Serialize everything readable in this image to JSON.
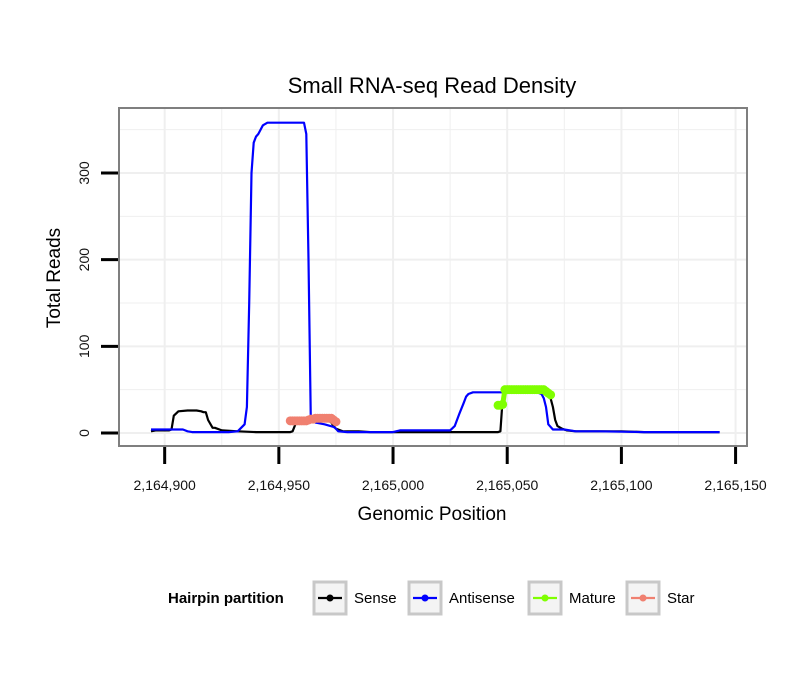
{
  "chart_data": {
    "type": "line",
    "title": "Small RNA-seq Read Density",
    "xlabel": "Genomic Position",
    "ylabel": "Total Reads",
    "xlim": [
      2164880,
      2165155
    ],
    "ylim": [
      -15,
      375
    ],
    "x_ticks": [
      2164900,
      2164950,
      2165000,
      2165050,
      2165100,
      2165150
    ],
    "x_tick_labels": [
      "2,164,900",
      "2,164,950",
      "2,165,000",
      "2,165,050",
      "2,165,100",
      "2,165,150"
    ],
    "y_ticks": [
      0,
      100,
      200,
      300
    ],
    "y_tick_labels": [
      "0",
      "100",
      "200",
      "300"
    ],
    "grid": true,
    "legend": {
      "title": "Hairpin partition",
      "position": "bottom",
      "entries": [
        "Sense",
        "Antisense",
        "Mature",
        "Star"
      ]
    },
    "series": [
      {
        "name": "Sense",
        "color": "#000000",
        "style": "line",
        "x": [
          2164894,
          2164896,
          2164902,
          2164903,
          2164904,
          2164906,
          2164910,
          2164914,
          2164916,
          2164917,
          2164918,
          2164919,
          2164921,
          2164922,
          2164925,
          2164932,
          2164940,
          2164950,
          2164955,
          2164956,
          2164958,
          2164962,
          2164966,
          2164970,
          2164972,
          2164973,
          2164974,
          2164975,
          2164978,
          2164985,
          2164990,
          2164995,
          2165000,
          2165010,
          2165020,
          2165030,
          2165040,
          2165045,
          2165046,
          2165047,
          2165048,
          2165050,
          2165055,
          2165060,
          2165065,
          2165068,
          2165069,
          2165070,
          2165071,
          2165072,
          2165074,
          2165076,
          2165080,
          2165090,
          2165100,
          2165110,
          2165120,
          2165130,
          2165140,
          2165143
        ],
        "y": [
          2,
          3,
          3,
          4,
          20,
          25,
          26,
          26,
          25,
          24,
          24,
          15,
          6,
          6,
          3,
          2,
          1,
          1,
          1,
          2,
          15,
          15,
          15,
          15,
          14,
          12,
          8,
          5,
          2,
          2,
          1,
          1,
          1,
          1,
          1,
          1,
          1,
          1,
          1,
          2,
          40,
          50,
          50,
          50,
          50,
          45,
          40,
          30,
          15,
          8,
          5,
          3,
          2,
          2,
          2,
          1,
          1,
          1,
          1,
          1
        ]
      },
      {
        "name": "Antisense",
        "color": "#0000ff",
        "style": "line",
        "x": [
          2164894,
          2164908,
          2164909,
          2164910,
          2164912,
          2164920,
          2164928,
          2164932,
          2164935,
          2164936,
          2164937,
          2164938,
          2164939,
          2164940,
          2164941,
          2164943,
          2164945,
          2164946,
          2164950,
          2164955,
          2164959,
          2164961,
          2164962,
          2164963,
          2164964,
          2164966,
          2164970,
          2164974,
          2164975,
          2164976,
          2164980,
          2164990,
          2165000,
          2165003,
          2165010,
          2165020,
          2165025,
          2165027,
          2165029,
          2165031,
          2165032,
          2165033,
          2165035,
          2165040,
          2165045,
          2165050,
          2165055,
          2165060,
          2165063,
          2165065,
          2165066,
          2165067,
          2165068,
          2165070,
          2165072,
          2165075,
          2165080,
          2165090,
          2165110,
          2165143
        ],
        "y": [
          4,
          4,
          3,
          2,
          1,
          1,
          1,
          2,
          10,
          30,
          150,
          300,
          335,
          342,
          345,
          355,
          358,
          358,
          358,
          358,
          358,
          358,
          345,
          200,
          15,
          12,
          10,
          7,
          5,
          2,
          1,
          1,
          1,
          3,
          3,
          3,
          3,
          8,
          22,
          35,
          42,
          45,
          47,
          47,
          47,
          47,
          47,
          47,
          47,
          45,
          40,
          30,
          10,
          4,
          4,
          4,
          2,
          2,
          1,
          1
        ]
      },
      {
        "name": "Mature",
        "color": "#7fff00",
        "style": "points",
        "x": [
          2165046,
          2165047,
          2165048,
          2165049,
          2165050,
          2165051,
          2165052,
          2165053,
          2165054,
          2165055,
          2165056,
          2165057,
          2165058,
          2165059,
          2165060,
          2165061,
          2165062,
          2165063,
          2165064,
          2165065,
          2165066,
          2165067,
          2165068,
          2165069
        ],
        "y": [
          32,
          32,
          33,
          50,
          50,
          50,
          50,
          50,
          50,
          50,
          50,
          50,
          50,
          50,
          50,
          50,
          50,
          50,
          50,
          50,
          50,
          48,
          46,
          44
        ]
      },
      {
        "name": "Star",
        "color": "#f08070",
        "style": "points",
        "x": [
          2164955,
          2164956,
          2164957,
          2164958,
          2164959,
          2164960,
          2164961,
          2164962,
          2164963,
          2164964,
          2164965,
          2164966,
          2164967,
          2164968,
          2164969,
          2164970,
          2164971,
          2164972,
          2164973,
          2164974,
          2164975
        ],
        "y": [
          14,
          14,
          14,
          14,
          14,
          14,
          14,
          14,
          15,
          16,
          16,
          17,
          17,
          17,
          17,
          17,
          17,
          17,
          17,
          15,
          13
        ]
      }
    ]
  }
}
